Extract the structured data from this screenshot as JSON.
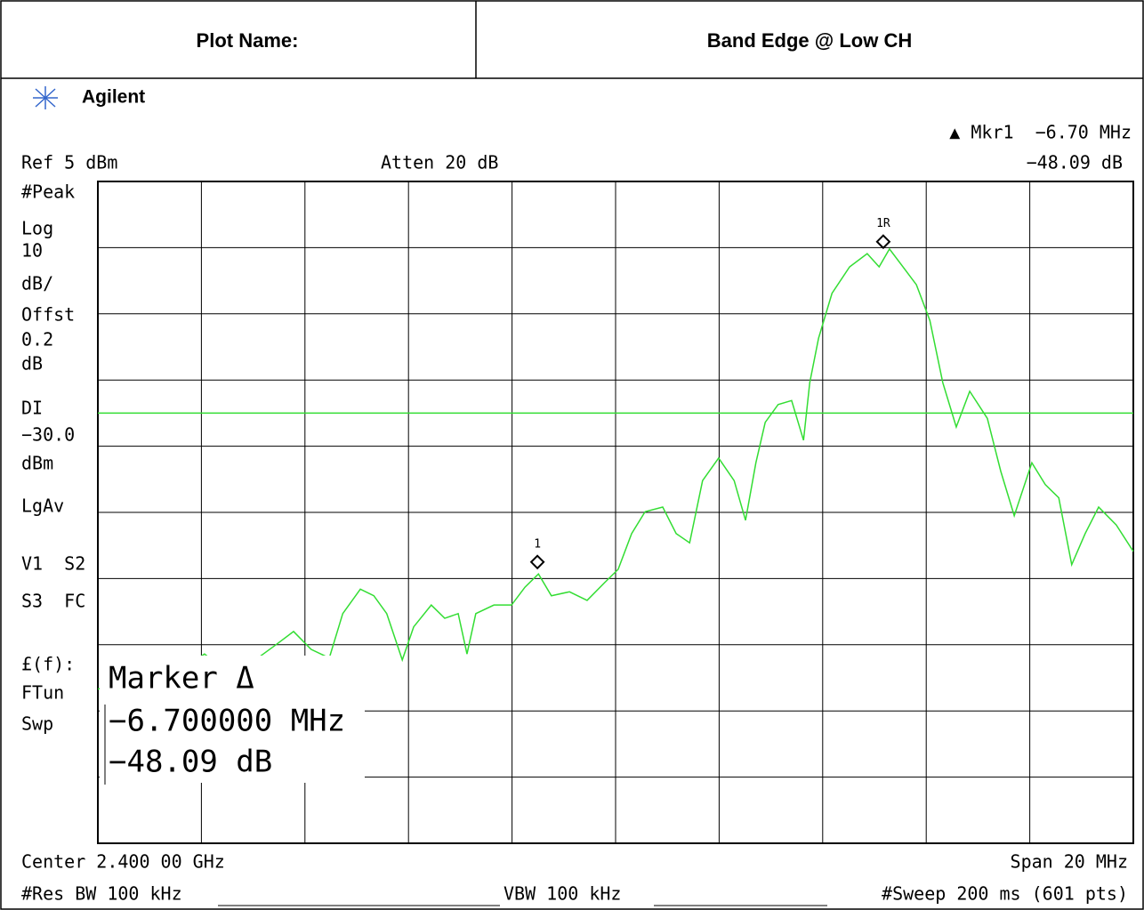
{
  "header": {
    "left": "Plot Name:",
    "right": "Band Edge @ Low CH"
  },
  "screen": {
    "brand": "Agilent",
    "marker_top": "▲ Mkr1  −6.70 MHz",
    "marker_top_value": "−48.09 dB",
    "ref": "Ref 5 dBm",
    "atten": "Atten 20 dB",
    "side_labels": [
      "#Peak",
      "Log",
      "10",
      "dB/",
      "Offst",
      "0.2",
      "dB",
      "DI",
      "−30.0",
      "dBm",
      "LgAv",
      "V1  S2",
      "S3  FC",
      "£(f):",
      "FTun",
      "Swp"
    ],
    "marker_box": [
      "Marker Δ",
      "−6.700000 MHz",
      "−48.09 dB"
    ],
    "center": "Center 2.400 00 GHz",
    "span": "Span 20 MHz",
    "rbw": "#Res BW 100 kHz",
    "vbw": "VBW 100 kHz",
    "sweep": "#Sweep 200 ms (601 pts)"
  },
  "chart_data": {
    "type": "line",
    "xlim": [
      2390,
      2410
    ],
    "ylim": [
      -95,
      5
    ],
    "xticks": [
      2390,
      2392,
      2394,
      2396,
      2398,
      2400,
      2402,
      2404,
      2406,
      2408,
      2410
    ],
    "yticks": [
      5,
      -5,
      -15,
      -25,
      -35,
      -45,
      -55,
      -65,
      -75,
      -85,
      -95
    ],
    "grid": true,
    "x": [
      2390.0,
      2390.69,
      2391.55,
      2392.06,
      2392.58,
      2393.09,
      2393.44,
      2393.78,
      2394.12,
      2394.47,
      2394.73,
      2395.07,
      2395.33,
      2395.58,
      2395.88,
      2396.1,
      2396.44,
      2396.7,
      2396.96,
      2397.13,
      2397.3,
      2397.65,
      2397.99,
      2398.25,
      2398.51,
      2398.76,
      2399.11,
      2399.45,
      2399.79,
      2400.05,
      2400.31,
      2400.57,
      2400.91,
      2401.17,
      2401.43,
      2401.68,
      2401.99,
      2402.29,
      2402.51,
      2402.71,
      2402.89,
      2403.14,
      2403.4,
      2403.63,
      2403.75,
      2403.92,
      2404.18,
      2404.52,
      2404.86,
      2405.09,
      2405.29,
      2405.55,
      2405.81,
      2406.07,
      2406.32,
      2406.58,
      2406.84,
      2407.18,
      2407.44,
      2407.7,
      2408.04,
      2408.3,
      2408.56,
      2408.81,
      2409.07,
      2409.33,
      2409.67,
      2410.0
    ],
    "series": [
      {
        "color": "#33dd33",
        "values": [
          -71.7,
          -70.4,
          -69.1,
          -66.4,
          -69.7,
          -67.0,
          -65.0,
          -63.0,
          -65.7,
          -67.0,
          -60.3,
          -56.6,
          -57.6,
          -60.3,
          -67.3,
          -62.3,
          -59.0,
          -61.0,
          -60.3,
          -66.4,
          -60.3,
          -59.0,
          -59.0,
          -56.3,
          -54.3,
          -57.6,
          -57.0,
          -58.3,
          -55.6,
          -53.6,
          -48.2,
          -44.9,
          -44.2,
          -48.2,
          -49.6,
          -40.2,
          -36.8,
          -40.2,
          -46.2,
          -37.5,
          -31.4,
          -28.7,
          -28.1,
          -34.1,
          -25.4,
          -18.7,
          -11.9,
          -7.9,
          -5.9,
          -7.9,
          -5.2,
          -7.9,
          -10.6,
          -16.0,
          -25.4,
          -32.1,
          -26.7,
          -30.8,
          -38.8,
          -45.5,
          -37.5,
          -40.8,
          -42.8,
          -52.9,
          -48.2,
          -44.2,
          -46.9,
          -50.9
        ]
      }
    ],
    "display_line": {
      "value": -30,
      "color": "#33dd33"
    },
    "markers": [
      {
        "label": "1R",
        "x": 2405.17,
        "y": -4.1
      },
      {
        "label": "1",
        "x": 2398.49,
        "y": -52.5
      }
    ]
  }
}
